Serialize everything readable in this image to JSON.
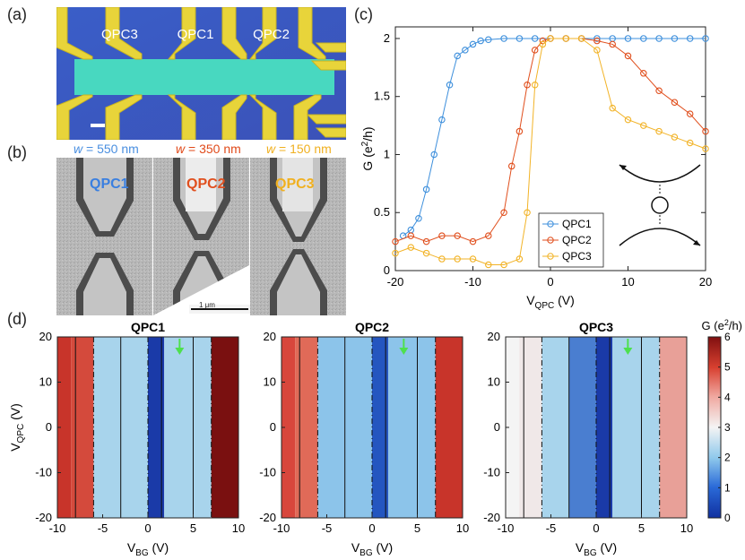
{
  "panel_labels": {
    "a": "(a)",
    "b": "(b)",
    "c": "(c)",
    "d": "(d)"
  },
  "panel_a": {
    "qpc_labels": [
      "QPC3",
      "QPC1",
      "QPC2"
    ]
  },
  "panel_b": {
    "widths": [
      {
        "prefix": "w",
        "eq": " = 550 nm",
        "color": "#4a8fe0"
      },
      {
        "prefix": "w",
        "eq": " = 350 nm",
        "color": "#e04a1a"
      },
      {
        "prefix": "w",
        "eq": " = 150 nm",
        "color": "#f0b020"
      }
    ],
    "qpc_labels": [
      {
        "text": "QPC1",
        "color": "#3a7fe0"
      },
      {
        "text": "QPC2",
        "color": "#e0501f"
      },
      {
        "text": "QPC3",
        "color": "#f0b020"
      }
    ],
    "scalebar_label": "1 μm"
  },
  "chart_data": [
    {
      "type": "scatter",
      "panel": "c",
      "xlabel": "V",
      "xlabel_sub": "QPC",
      "xlabel_unit": " (V)",
      "ylabel": "G (e",
      "ylabel_sup": "2",
      "ylabel_unit": "/h)",
      "xlim": [
        -20,
        20
      ],
      "ylim": [
        0,
        2.1
      ],
      "xticks": [
        "-20",
        "-10",
        "0",
        "10",
        "20"
      ],
      "yticks": [
        "0",
        "0.5",
        "1",
        "1.5",
        "2"
      ],
      "legend": [
        "QPC1",
        "QPC2",
        "QPC3"
      ],
      "colors": [
        "#3d8fdc",
        "#e04e1c",
        "#f2b327"
      ],
      "series": [
        {
          "name": "QPC1",
          "x": [
            -19,
            -18,
            -17,
            -16,
            -15,
            -14,
            -13,
            -12,
            -11,
            -10,
            -9,
            -8,
            -6,
            -4,
            -2,
            0,
            2,
            4,
            6,
            8,
            10,
            12,
            14,
            16,
            18,
            20
          ],
          "y": [
            0.3,
            0.35,
            0.45,
            0.7,
            1.0,
            1.3,
            1.6,
            1.85,
            1.9,
            1.95,
            1.98,
            1.99,
            2,
            2,
            2,
            2,
            2,
            2,
            2,
            2,
            2,
            2,
            2,
            2,
            2,
            2
          ]
        },
        {
          "name": "QPC2",
          "x": [
            -20,
            -18,
            -16,
            -14,
            -12,
            -10,
            -8,
            -6,
            -5,
            -4,
            -3,
            -2,
            -1,
            0,
            2,
            4,
            6,
            8,
            10,
            12,
            14,
            16,
            18,
            20
          ],
          "y": [
            0.25,
            0.3,
            0.25,
            0.3,
            0.3,
            0.25,
            0.3,
            0.5,
            0.9,
            1.2,
            1.6,
            1.9,
            1.98,
            2,
            2,
            2,
            1.98,
            1.95,
            1.85,
            1.7,
            1.55,
            1.45,
            1.35,
            1.2
          ]
        },
        {
          "name": "QPC3",
          "x": [
            -20,
            -18,
            -16,
            -14,
            -12,
            -10,
            -8,
            -6,
            -4,
            -3,
            -2,
            -1,
            0,
            2,
            4,
            6,
            8,
            10,
            12,
            14,
            16,
            18,
            20
          ],
          "y": [
            0.15,
            0.2,
            0.15,
            0.1,
            0.1,
            0.1,
            0.05,
            0.05,
            0.1,
            0.5,
            1.6,
            1.95,
            2,
            2,
            2,
            1.9,
            1.4,
            1.3,
            1.25,
            1.2,
            1.15,
            1.1,
            1.05
          ]
        }
      ]
    },
    {
      "type": "heatmap",
      "panel": "d",
      "titles": [
        "QPC1",
        "QPC2",
        "QPC3"
      ],
      "xlabel": "V",
      "xlabel_sub": "BG",
      "xlabel_unit": " (V)",
      "ylabel": "V",
      "ylabel_sub": "QPC",
      "ylabel_unit": " (V)",
      "xlim": [
        -10,
        10
      ],
      "ylim": [
        -20,
        20
      ],
      "xticks": [
        "-10",
        "-5",
        "0",
        "5",
        "10"
      ],
      "yticks": [
        "20",
        "10",
        "0",
        "-10",
        "-20"
      ],
      "dashed_x": [
        -6,
        0,
        7
      ],
      "colorbar_label": "G (e",
      "colorbar_sup": "2",
      "colorbar_unit": "/h)",
      "colorbar_ticks": [
        "6",
        "5",
        "4",
        "3",
        "2",
        "1",
        "0"
      ],
      "arrow_x": 3.5
    }
  ]
}
